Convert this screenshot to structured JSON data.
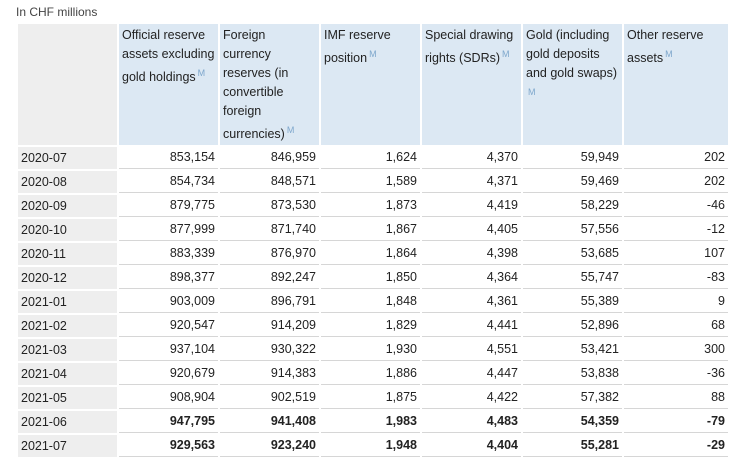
{
  "unit_label": "In CHF millions",
  "meta_marker": "M",
  "columns": [
    {
      "key": "official",
      "label": "Official reserve assets excluding gold holdings"
    },
    {
      "key": "foreign",
      "label": "Foreign currency reserves (in convertible foreign currencies)"
    },
    {
      "key": "imf",
      "label": "IMF reserve position"
    },
    {
      "key": "sdr",
      "label": "Special drawing rights (SDRs)"
    },
    {
      "key": "gold",
      "label": "Gold (including gold deposits and gold swaps)"
    },
    {
      "key": "other",
      "label": "Other reserve assets"
    }
  ],
  "rows": [
    {
      "period": "2020-07",
      "values": [
        "853,154",
        "846,959",
        "1,624",
        "4,370",
        "59,949",
        "202"
      ],
      "bold": false
    },
    {
      "period": "2020-08",
      "values": [
        "854,734",
        "848,571",
        "1,589",
        "4,371",
        "59,469",
        "202"
      ],
      "bold": false
    },
    {
      "period": "2020-09",
      "values": [
        "879,775",
        "873,530",
        "1,873",
        "4,419",
        "58,229",
        "-46"
      ],
      "bold": false
    },
    {
      "period": "2020-10",
      "values": [
        "877,999",
        "871,740",
        "1,867",
        "4,405",
        "57,556",
        "-12"
      ],
      "bold": false
    },
    {
      "period": "2020-11",
      "values": [
        "883,339",
        "876,970",
        "1,864",
        "4,398",
        "53,685",
        "107"
      ],
      "bold": false
    },
    {
      "period": "2020-12",
      "values": [
        "898,377",
        "892,247",
        "1,850",
        "4,364",
        "55,747",
        "-83"
      ],
      "bold": false
    },
    {
      "period": "2021-01",
      "values": [
        "903,009",
        "896,791",
        "1,848",
        "4,361",
        "55,389",
        "9"
      ],
      "bold": false
    },
    {
      "period": "2021-02",
      "values": [
        "920,547",
        "914,209",
        "1,829",
        "4,441",
        "52,896",
        "68"
      ],
      "bold": false
    },
    {
      "period": "2021-03",
      "values": [
        "937,104",
        "930,322",
        "1,930",
        "4,551",
        "53,421",
        "300"
      ],
      "bold": false
    },
    {
      "period": "2021-04",
      "values": [
        "920,679",
        "914,383",
        "1,886",
        "4,447",
        "53,838",
        "-36"
      ],
      "bold": false
    },
    {
      "period": "2021-05",
      "values": [
        "908,904",
        "902,519",
        "1,875",
        "4,422",
        "57,382",
        "88"
      ],
      "bold": false
    },
    {
      "period": "2021-06",
      "values": [
        "947,795",
        "941,408",
        "1,983",
        "4,483",
        "54,359",
        "-79"
      ],
      "bold": true
    },
    {
      "period": "2021-07",
      "values": [
        "929,563",
        "923,240",
        "1,948",
        "4,404",
        "55,281",
        "-29"
      ],
      "bold": true
    }
  ],
  "colors": {
    "header_bg": "#dce8f3",
    "row_label_bg": "#eeeeee",
    "meta_marker": "#7ea7cc"
  }
}
